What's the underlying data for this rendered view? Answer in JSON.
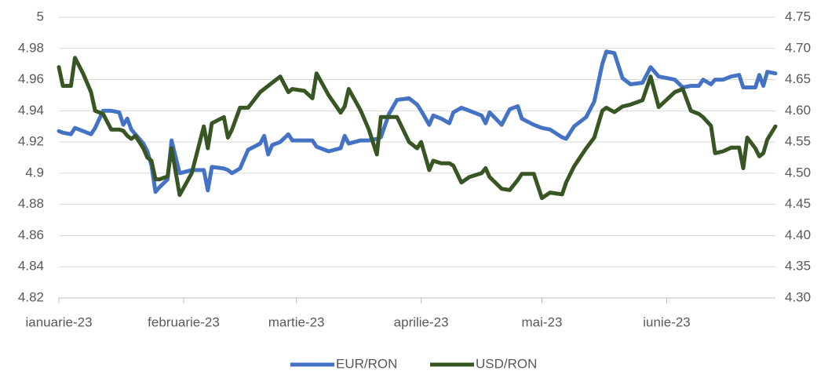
{
  "chart_data": {
    "type": "line",
    "x": [
      0,
      1,
      3,
      4,
      6,
      8,
      9,
      11,
      13,
      15,
      16,
      17,
      18,
      19,
      21,
      22,
      23,
      24,
      25,
      27,
      28,
      30,
      33,
      36,
      37,
      38,
      41,
      42,
      43,
      45,
      47,
      50,
      51,
      52,
      53,
      55,
      57,
      58,
      61,
      63,
      64,
      67,
      70,
      71,
      72,
      75,
      77,
      79,
      80,
      82,
      84,
      87,
      89,
      90,
      92,
      93,
      95,
      97,
      98,
      100,
      102,
      105,
      106,
      107,
      110,
      112,
      114,
      115,
      118,
      120,
      122,
      125,
      126,
      128,
      131,
      133,
      135,
      136,
      138,
      140,
      142,
      145,
      147,
      149,
      153,
      155,
      157,
      159,
      160,
      162,
      163,
      165,
      167,
      169,
      170,
      171,
      173,
      174,
      175,
      176,
      178
    ],
    "xlim": [
      0,
      178
    ],
    "xticks": [
      {
        "value": 0,
        "label": "ianuarie-23"
      },
      {
        "value": 31,
        "label": "februarie-23"
      },
      {
        "value": 59,
        "label": "martie-23"
      },
      {
        "value": 90,
        "label": "aprilie-23"
      },
      {
        "value": 120,
        "label": "mai-23"
      },
      {
        "value": 151,
        "label": "iunie-23"
      }
    ],
    "ylim": [
      4.82,
      5
    ],
    "yticks": [
      4.82,
      4.84,
      4.86,
      4.88,
      4.9,
      4.92,
      4.94,
      4.96,
      4.98,
      5
    ],
    "y2lim": [
      4.3,
      4.75
    ],
    "y2ticks": [
      {
        "value": 4.3,
        "label": "4.30"
      },
      4.35,
      {
        "value": 4.4,
        "label": "4.40"
      },
      4.45,
      {
        "value": 4.5,
        "label": "4.50"
      },
      4.55,
      {
        "value": 4.6,
        "label": "4.60"
      },
      4.65,
      {
        "value": 4.7,
        "label": "4.70"
      },
      4.75
    ],
    "grid": true,
    "legend": "bottom",
    "series": [
      {
        "name": "EUR/RON",
        "color": "#4472c4",
        "values": [
          4.927,
          4.926,
          4.925,
          4.929,
          4.927,
          4.925,
          4.929,
          4.94,
          4.94,
          4.939,
          4.931,
          4.935,
          4.928,
          4.925,
          4.919,
          4.914,
          4.905,
          4.888,
          4.891,
          4.896,
          4.921,
          4.9,
          4.902,
          4.902,
          4.889,
          4.904,
          4.903,
          4.902,
          4.9,
          4.903,
          4.915,
          4.919,
          4.924,
          4.912,
          4.918,
          4.92,
          4.925,
          4.921,
          4.921,
          4.921,
          4.917,
          4.914,
          4.916,
          4.924,
          4.919,
          4.921,
          4.921,
          4.922,
          4.923,
          4.938,
          4.947,
          4.948,
          4.944,
          4.94,
          4.931,
          4.937,
          4.935,
          4.932,
          4.939,
          4.942,
          4.94,
          4.937,
          4.932,
          4.939,
          4.931,
          4.941,
          4.943,
          4.935,
          4.931,
          4.929,
          4.928,
          4.923,
          4.922,
          4.93,
          4.936,
          4.946,
          4.97,
          4.978,
          4.977,
          4.961,
          4.957,
          4.958,
          4.968,
          4.962,
          4.96,
          4.955,
          4.956,
          4.956,
          4.96,
          4.957,
          4.96,
          4.96,
          4.962,
          4.963,
          4.955,
          4.955,
          4.955,
          4.963,
          4.956,
          4.965,
          4.964
        ]
      },
      {
        "name": "USD/RON",
        "color": "#375623",
        "axis": "y2",
        "values": [
          4.67,
          4.64,
          4.64,
          4.685,
          4.66,
          4.63,
          4.6,
          4.595,
          4.57,
          4.57,
          4.568,
          4.56,
          4.555,
          4.56,
          4.54,
          4.525,
          4.52,
          4.49,
          4.49,
          4.495,
          4.54,
          4.465,
          4.5,
          4.575,
          4.54,
          4.58,
          4.59,
          4.557,
          4.57,
          4.605,
          4.605,
          4.63,
          4.635,
          4.64,
          4.645,
          4.655,
          4.63,
          4.635,
          4.632,
          4.62,
          4.66,
          4.625,
          4.597,
          4.607,
          4.635,
          4.6,
          4.57,
          4.53,
          4.59,
          4.59,
          4.59,
          4.55,
          4.54,
          4.55,
          4.505,
          4.52,
          4.516,
          4.516,
          4.512,
          4.485,
          4.494,
          4.5,
          4.508,
          4.494,
          4.475,
          4.473,
          4.489,
          4.499,
          4.499,
          4.46,
          4.469,
          4.466,
          4.485,
          4.511,
          4.54,
          4.557,
          4.6,
          4.605,
          4.598,
          4.607,
          4.61,
          4.617,
          4.655,
          4.606,
          4.63,
          4.635,
          4.6,
          4.595,
          4.59,
          4.576,
          4.532,
          4.535,
          4.541,
          4.541,
          4.508,
          4.557,
          4.54,
          4.527,
          4.532,
          4.554,
          4.575
        ]
      }
    ]
  }
}
